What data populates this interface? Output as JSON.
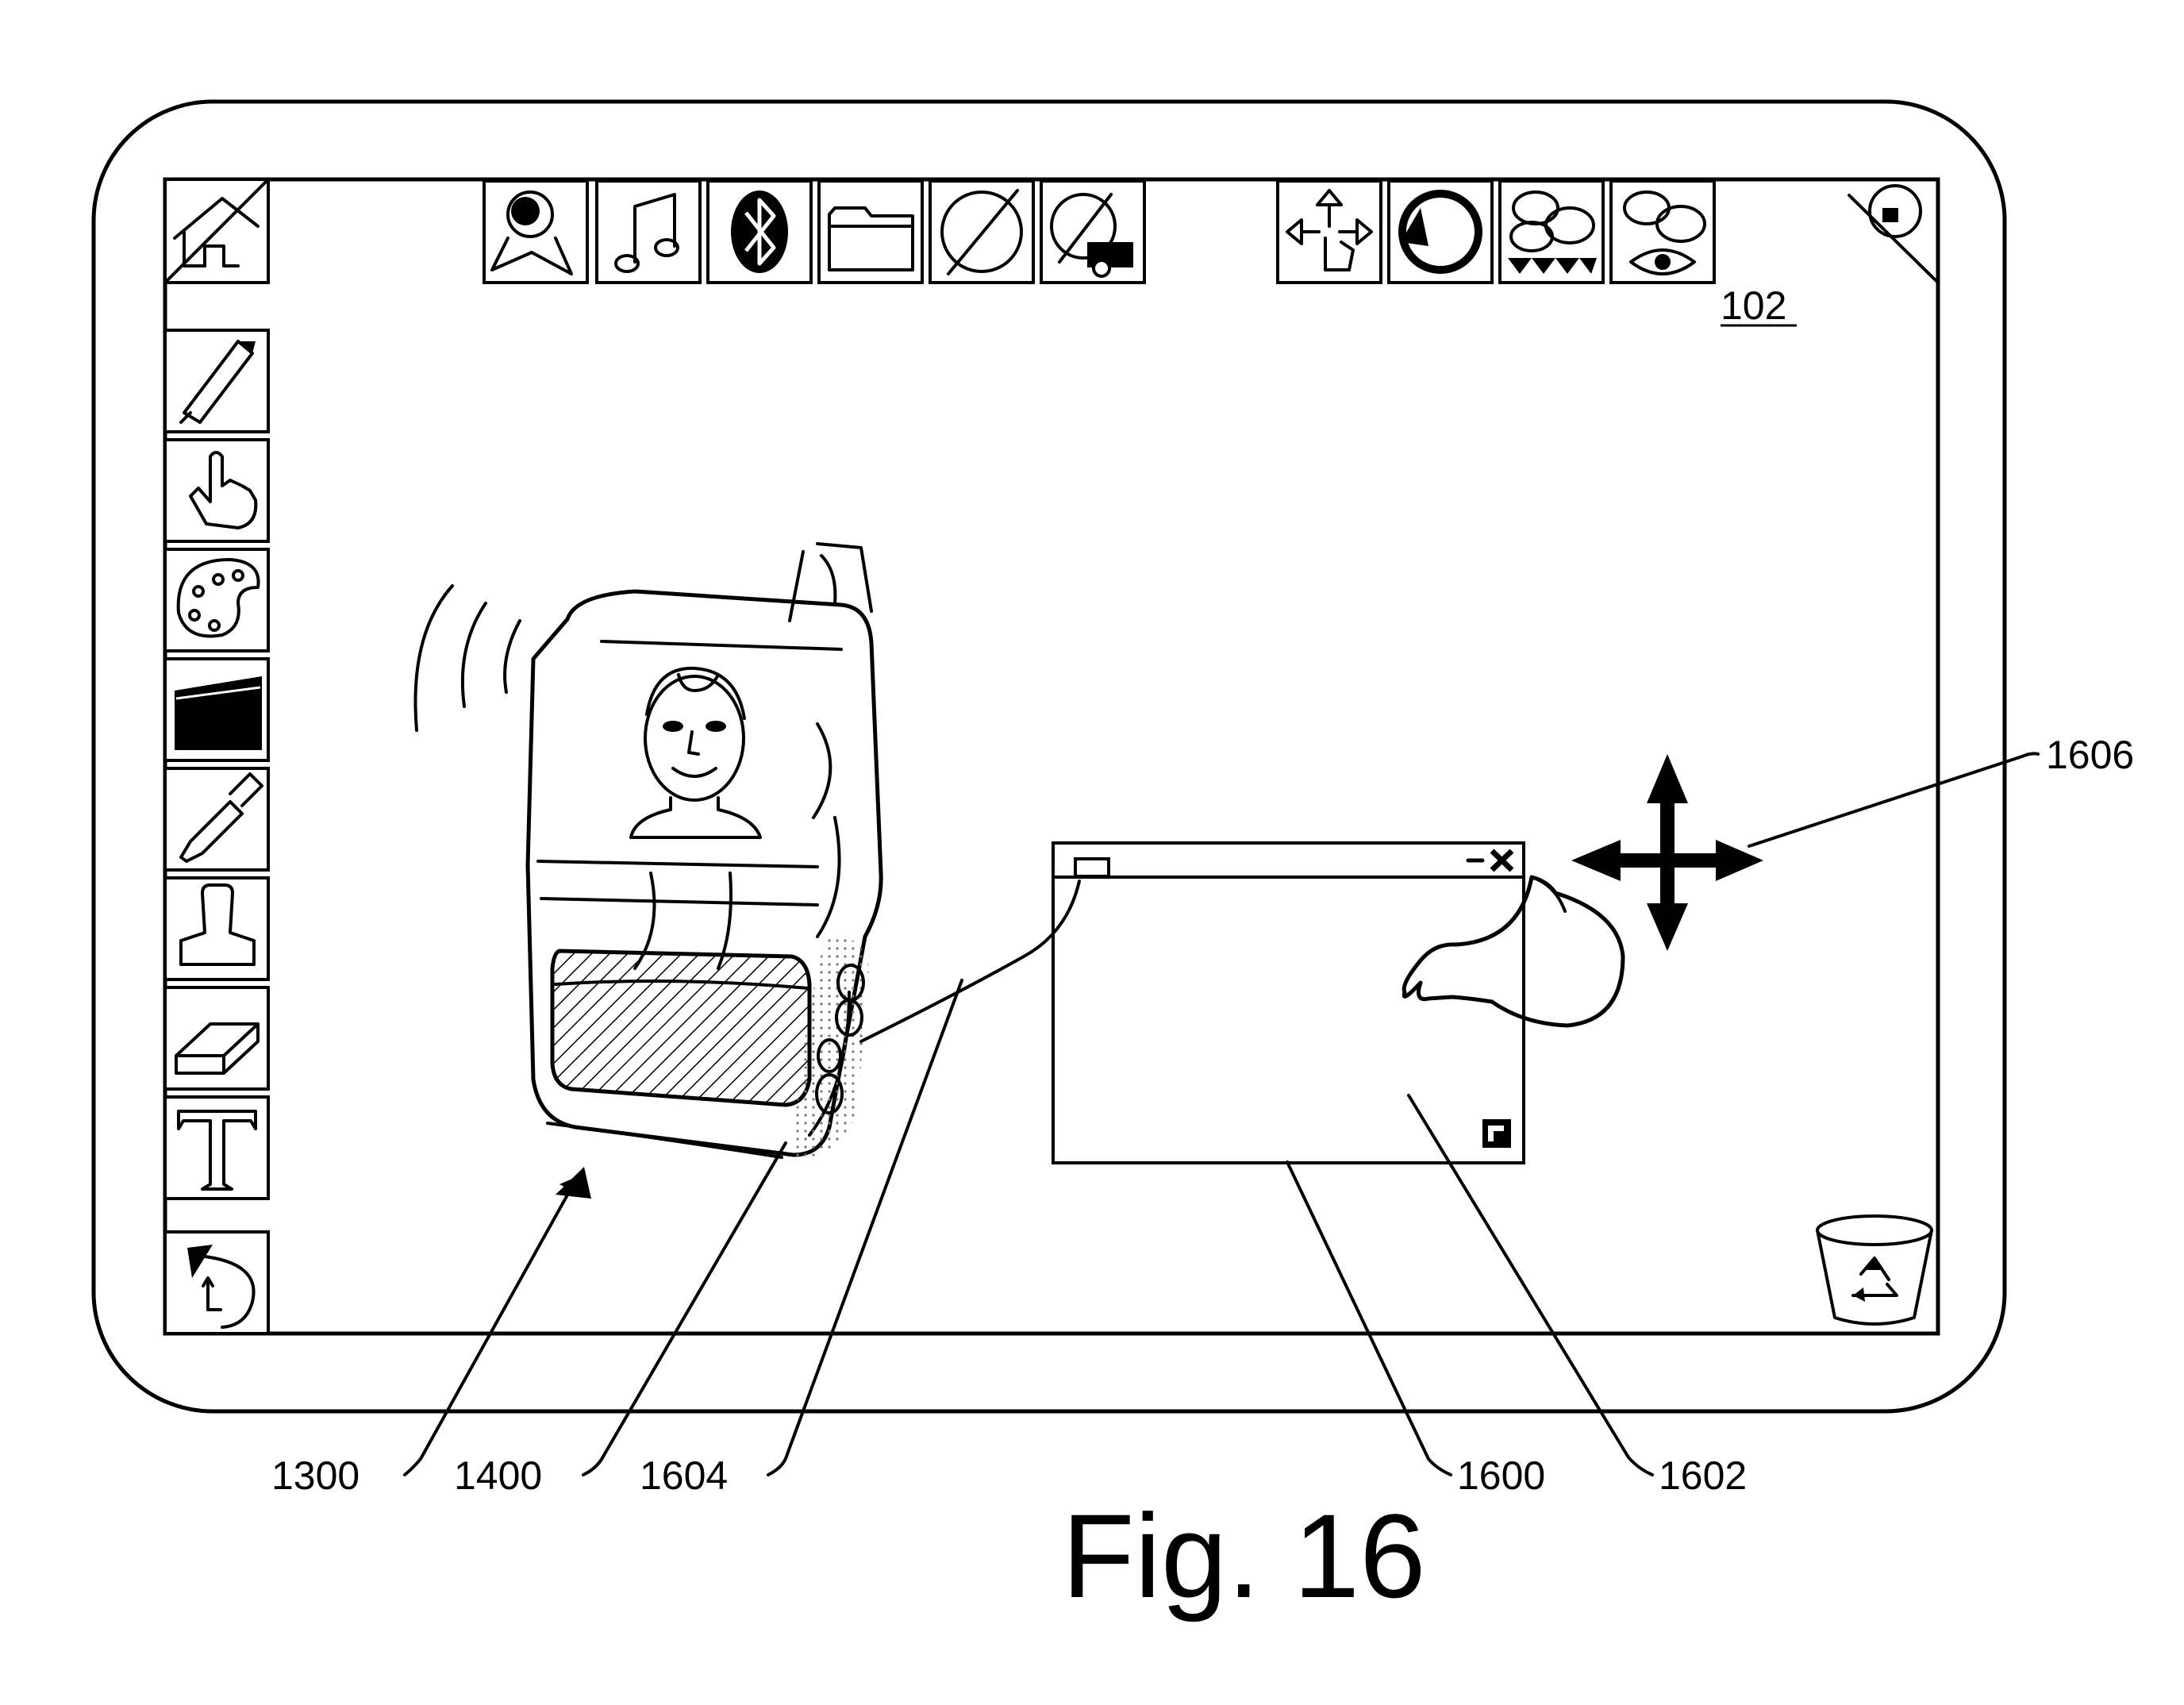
{
  "figure_title": "Fig. 16",
  "screen_ref": "102",
  "reference_labels": {
    "l1300": "1300",
    "l1400": "1400",
    "l1604": "1604",
    "l1600": "1600",
    "l1602": "1602",
    "l1606": "1606"
  },
  "toolbar_top_left": [
    "webcam-icon",
    "music-note-icon",
    "bluetooth-icon",
    "folder-icon",
    "globe-icon",
    "globe-camera-icon"
  ],
  "toolbar_top_right": [
    "move-icon",
    "rotate-icon",
    "chat-group-icon",
    "chat-view-icon"
  ],
  "toolbar_left": [
    "marker-icon",
    "hand-icon",
    "palette-icon",
    "clapboard-icon",
    "eyedropper-icon",
    "stamp-icon",
    "eraser-icon",
    "text-tool-icon"
  ],
  "corner_icons": [
    "home-corner-icon",
    "page-curl-icon",
    "undo-icon",
    "recycle-bin-icon"
  ],
  "window_controls": [
    "minimize-icon",
    "close-icon",
    "resize-icon"
  ],
  "gesture": [
    "touch-hand-icon",
    "four-way-arrow-icon"
  ]
}
